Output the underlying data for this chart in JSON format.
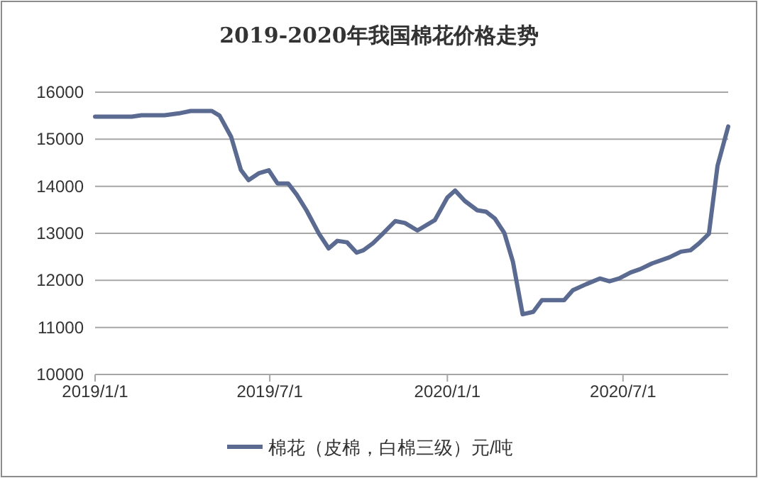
{
  "chart_data": {
    "type": "line",
    "title": "2019-2020年我国棉花价格走势",
    "x": [
      "2019-01-01",
      "2019-02-08",
      "2019-02-18",
      "2019-03-14",
      "2019-03-29",
      "2019-04-10",
      "2019-05-02",
      "2019-05-10",
      "2019-05-22",
      "2019-06-01",
      "2019-06-09",
      "2019-06-20",
      "2019-06-30",
      "2019-07-09",
      "2019-07-20",
      "2019-07-29",
      "2019-08-08",
      "2019-08-21",
      "2019-08-31",
      "2019-09-09",
      "2019-09-19",
      "2019-09-29",
      "2019-10-06",
      "2019-10-16",
      "2019-10-26",
      "2019-11-08",
      "2019-11-18",
      "2019-12-01",
      "2019-12-19",
      "2020-01-01",
      "2020-01-09",
      "2020-01-19",
      "2020-02-01",
      "2020-02-10",
      "2020-02-19",
      "2020-02-29",
      "2020-03-09",
      "2020-03-19",
      "2020-03-30",
      "2020-04-08",
      "2020-05-01",
      "2020-05-10",
      "2020-05-24",
      "2020-06-07",
      "2020-06-17",
      "2020-06-27",
      "2020-07-09",
      "2020-07-19",
      "2020-07-31",
      "2020-08-18",
      "2020-08-30",
      "2020-09-09",
      "2020-09-18",
      "2020-09-28",
      "2020-10-07",
      "2020-10-18"
    ],
    "series": [
      {
        "name": "棉花（皮棉，白棉三级）元/吨",
        "color": "#5b6a91",
        "values": [
          15480,
          15480,
          15510,
          15510,
          15550,
          15600,
          15600,
          15500,
          15050,
          14350,
          14130,
          14280,
          14340,
          14060,
          14060,
          13820,
          13490,
          12990,
          12680,
          12840,
          12810,
          12590,
          12640,
          12790,
          12990,
          13260,
          13220,
          13060,
          13280,
          13760,
          13910,
          13690,
          13490,
          13460,
          13320,
          13010,
          12390,
          11280,
          11330,
          11580,
          11580,
          11790,
          11920,
          12040,
          11980,
          12040,
          12170,
          12240,
          12360,
          12490,
          12610,
          12640,
          12790,
          12990,
          14440,
          15270
        ]
      }
    ],
    "xlim": [
      "2019-01-01",
      "2020-10-18"
    ],
    "xticks": [
      {
        "value": "2019-01-01",
        "label": "2019/1/1"
      },
      {
        "value": "2019-07-01",
        "label": "2019/7/1"
      },
      {
        "value": "2020-01-01",
        "label": "2020/1/1"
      },
      {
        "value": "2020-07-01",
        "label": "2020/7/1"
      }
    ],
    "ylim": [
      10000,
      16000
    ],
    "yticks": [
      10000,
      11000,
      12000,
      13000,
      14000,
      15000,
      16000
    ],
    "grid": "y",
    "legend": "bottom",
    "marker": "none",
    "line_style": "solid"
  }
}
